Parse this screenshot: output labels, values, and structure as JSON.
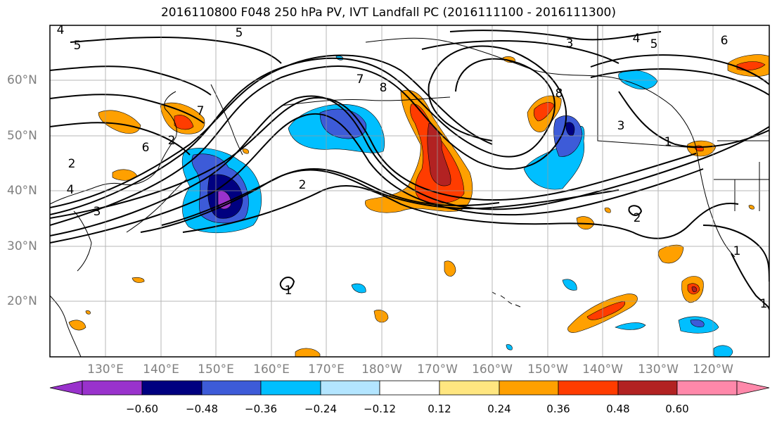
{
  "figure": {
    "title": "2016110800 F048 250 hPa PV, IVT Landfall PC (2016111100 - 2016111300)"
  },
  "map": {
    "lat_labels": [
      "60°N",
      "50°N",
      "40°N",
      "30°N",
      "20°N"
    ],
    "lon_labels": [
      "130°E",
      "140°E",
      "150°E",
      "160°E",
      "170°E",
      "180°W",
      "170°W",
      "160°W",
      "150°W",
      "140°W",
      "130°W",
      "120°W"
    ],
    "contour_labels": [
      "4",
      "5",
      "5",
      "3",
      "4",
      "5",
      "6",
      "7",
      "8",
      "8",
      "7",
      "6",
      "4",
      "2",
      "2",
      "3",
      "2",
      "3",
      "1",
      "2",
      "1",
      "1",
      "1"
    ],
    "shading_colors": {
      "dark_red": "#b22222",
      "red": "#ff3c00",
      "orange": "#ffa000",
      "light_orange": "#ffe680",
      "light_blue": "#b3e5ff",
      "blue": "#00bfff",
      "mid_blue": "#3d5bd8",
      "navy": "#000080",
      "purple": "#9932cc"
    }
  },
  "colorbar": {
    "ticks": [
      "−0.60",
      "−0.48",
      "−0.36",
      "−0.24",
      "−0.12",
      "0.12",
      "0.24",
      "0.36",
      "0.48",
      "0.60"
    ],
    "colors": [
      "#9932cc",
      "#000080",
      "#3d5bd8",
      "#00bfff",
      "#b3e5ff",
      "#ffffff",
      "#ffe680",
      "#ffa000",
      "#ff3c00",
      "#b22222",
      "#ff88aa"
    ]
  }
}
